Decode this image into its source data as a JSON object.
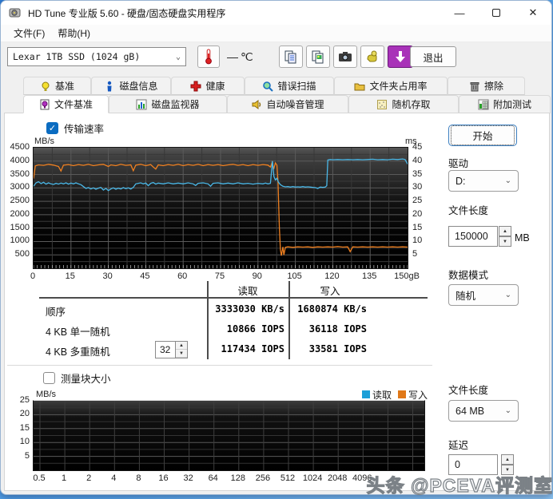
{
  "window": {
    "title": "HD Tune 专业版 5.60 - 硬盘/固态硬盘实用程序"
  },
  "menu": {
    "items": [
      "文件(F)",
      "帮助(H)"
    ]
  },
  "toolbar": {
    "drive_select_value": "Lexar 1TB SSD (1024 gB)",
    "temperature_value": "—",
    "temperature_unit": "℃",
    "exit_label": "退出",
    "icon_buttons": [
      "thermometer-icon",
      "copy-text-icon",
      "copy-image-icon",
      "camera-icon",
      "donate-hand-icon",
      "update-download-icon"
    ]
  },
  "tabs": {
    "row1": [
      {
        "name": "benchmark",
        "label": "基准",
        "icon": "bulb",
        "active": false
      },
      {
        "name": "disk-info",
        "label": "磁盘信息",
        "icon": "info",
        "active": false
      },
      {
        "name": "health",
        "label": "健康",
        "icon": "cross",
        "active": false
      },
      {
        "name": "error-scan",
        "label": "错误扫描",
        "icon": "magnifier",
        "active": false
      },
      {
        "name": "folder-usage",
        "label": "文件夹占用率",
        "icon": "folder",
        "active": false
      },
      {
        "name": "erase",
        "label": "擦除",
        "icon": "trash",
        "active": false
      }
    ],
    "row2": [
      {
        "name": "file-benchmark",
        "label": "文件基准",
        "icon": "filebulb",
        "active": true
      },
      {
        "name": "disk-monitor",
        "label": "磁盘监视器",
        "icon": "bars",
        "active": false
      },
      {
        "name": "auto-noise",
        "label": "自动噪音管理",
        "icon": "speaker",
        "active": false
      },
      {
        "name": "random-access",
        "label": "随机存取",
        "icon": "dots",
        "active": false
      },
      {
        "name": "extra-tests",
        "label": "附加测试",
        "icon": "chartbox",
        "active": false
      }
    ]
  },
  "controls": {
    "transfer_rate_label": "传输速率",
    "transfer_rate_checked": true,
    "block_size_label": "测量块大小",
    "block_size_checked": false,
    "start_label": "开始",
    "drive_label": "驱动",
    "drive_value": "D:",
    "file_length_label": "文件长度",
    "file_length_value": "150000",
    "file_length_unit": "MB",
    "data_mode_label": "数据模式",
    "data_mode_value": "随机",
    "file_length2_label": "文件长度",
    "file_length2_value": "64 MB",
    "delay_label": "延迟",
    "delay_value": "0",
    "queue_depth_value": "32"
  },
  "results": {
    "col_headers": [
      "读取",
      "写入"
    ],
    "rows": [
      {
        "label": "顺序",
        "read": "3333030 KB/s",
        "write": "1680874 KB/s",
        "spinner": null
      },
      {
        "label": "4 KB 单一随机",
        "read": "10866 IOPS",
        "write": "36118 IOPS",
        "spinner": null
      },
      {
        "label": "4 KB 多重随机",
        "read": "117434 IOPS",
        "write": "33581 IOPS",
        "spinner": "32"
      }
    ]
  },
  "legend": {
    "read_label": "读取",
    "write_label": "写入",
    "read_color": "#1b9fd8",
    "write_color": "#e07818"
  },
  "watermark": "头条 @PCEVA评测室",
  "chart_data": [
    {
      "type": "line",
      "title": "传输速率",
      "ylabel_left": "MB/s",
      "ylabel_right": "ms",
      "xlim": [
        0,
        150
      ],
      "ylim_left": [
        0,
        4500
      ],
      "ylim_right": [
        0,
        45
      ],
      "x_ticks": [
        "0",
        "15",
        "30",
        "45",
        "60",
        "75",
        "90",
        "105",
        "120",
        "135",
        "150gB"
      ],
      "x_tick_values": [
        0,
        15,
        30,
        45,
        60,
        75,
        90,
        105,
        120,
        135,
        150
      ],
      "y_ticks_left": [
        4500,
        4000,
        3500,
        3000,
        2500,
        2000,
        1500,
        1000,
        500
      ],
      "y_ticks_right": [
        45,
        40,
        35,
        30,
        25,
        20,
        15,
        10,
        5
      ],
      "grid": true,
      "series": [
        {
          "name": "写入",
          "color": "#f08020",
          "points": [
            [
              0,
              3350
            ],
            [
              0.7,
              3820
            ],
            [
              2,
              3860
            ],
            [
              4,
              3840
            ],
            [
              6,
              3880
            ],
            [
              8,
              3850
            ],
            [
              10,
              3800
            ],
            [
              11,
              3630
            ],
            [
              12,
              3850
            ],
            [
              14,
              3870
            ],
            [
              16,
              3830
            ],
            [
              18,
              3870
            ],
            [
              20,
              3840
            ],
            [
              22,
              3880
            ],
            [
              24,
              3830
            ],
            [
              26,
              3860
            ],
            [
              28,
              3880
            ],
            [
              30,
              3800
            ],
            [
              31,
              3860
            ],
            [
              33,
              3830
            ],
            [
              35,
              3880
            ],
            [
              37,
              3840
            ],
            [
              39,
              3860
            ],
            [
              40,
              3640
            ],
            [
              41,
              3850
            ],
            [
              43,
              3880
            ],
            [
              45,
              3830
            ],
            [
              47,
              3870
            ],
            [
              48,
              3780
            ],
            [
              49,
              3700
            ],
            [
              50,
              3860
            ],
            [
              52,
              3830
            ],
            [
              54,
              3870
            ],
            [
              56,
              3840
            ],
            [
              58,
              3880
            ],
            [
              60,
              3830
            ],
            [
              62,
              3870
            ],
            [
              64,
              3840
            ],
            [
              66,
              3880
            ],
            [
              68,
              3830
            ],
            [
              70,
              3870
            ],
            [
              72,
              3840
            ],
            [
              74,
              3870
            ],
            [
              76,
              3830
            ],
            [
              78,
              3860
            ],
            [
              80,
              3880
            ],
            [
              82,
              3840
            ],
            [
              84,
              3870
            ],
            [
              86,
              3830
            ],
            [
              88,
              3870
            ],
            [
              90,
              3840
            ],
            [
              92,
              3870
            ],
            [
              94,
              3850
            ],
            [
              95,
              3780
            ],
            [
              95.7,
              3960
            ],
            [
              96.3,
              3700
            ],
            [
              97,
              3930
            ],
            [
              97.6,
              3850
            ],
            [
              98,
              3300
            ],
            [
              98.6,
              1500
            ],
            [
              99,
              700
            ],
            [
              99.4,
              470
            ],
            [
              100,
              800
            ],
            [
              100.4,
              500
            ],
            [
              101,
              780
            ],
            [
              102,
              800
            ],
            [
              104,
              780
            ],
            [
              106,
              800
            ],
            [
              108,
              790
            ],
            [
              110,
              800
            ],
            [
              112,
              780
            ],
            [
              114,
              800
            ],
            [
              116,
              790
            ],
            [
              118,
              800
            ],
            [
              120,
              790
            ],
            [
              122,
              810
            ],
            [
              124,
              790
            ],
            [
              126,
              800
            ],
            [
              127,
              620
            ],
            [
              128,
              800
            ],
            [
              130,
              790
            ],
            [
              132,
              800
            ],
            [
              134,
              790
            ],
            [
              136,
              800
            ],
            [
              138,
              790
            ],
            [
              140,
              800
            ],
            [
              142,
              790
            ],
            [
              144,
              800
            ],
            [
              146,
              790
            ],
            [
              148,
              800
            ],
            [
              150,
              790
            ]
          ]
        },
        {
          "name": "读取",
          "color": "#4ab8e8",
          "points": [
            [
              0,
              3060
            ],
            [
              1,
              3190
            ],
            [
              2,
              3230
            ],
            [
              3,
              3160
            ],
            [
              4,
              3210
            ],
            [
              5,
              3140
            ],
            [
              6,
              3190
            ],
            [
              7,
              3150
            ],
            [
              8,
              3130
            ],
            [
              9,
              3170
            ],
            [
              10,
              3140
            ],
            [
              11,
              3180
            ],
            [
              12,
              3150
            ],
            [
              13,
              3190
            ],
            [
              14,
              3140
            ],
            [
              15,
              3180
            ],
            [
              16,
              3150
            ],
            [
              17,
              3190
            ],
            [
              18,
              3150
            ],
            [
              19,
              3120
            ],
            [
              20,
              3050
            ],
            [
              21,
              2980
            ],
            [
              22,
              3010
            ],
            [
              23,
              2960
            ],
            [
              24,
              3000
            ],
            [
              25,
              2950
            ],
            [
              26,
              2990
            ],
            [
              27,
              3020
            ],
            [
              28,
              2920
            ],
            [
              29,
              2980
            ],
            [
              30,
              2900
            ],
            [
              31,
              2960
            ],
            [
              32,
              3000
            ],
            [
              33,
              2950
            ],
            [
              34,
              2990
            ],
            [
              35,
              2960
            ],
            [
              36,
              3010
            ],
            [
              37,
              2970
            ],
            [
              38,
              3000
            ],
            [
              39,
              2960
            ],
            [
              40,
              3020
            ],
            [
              41,
              3150
            ],
            [
              42,
              3170
            ],
            [
              43,
              3190
            ],
            [
              44,
              3150
            ],
            [
              45,
              3180
            ],
            [
              46,
              3080
            ],
            [
              47,
              3170
            ],
            [
              48,
              3200
            ],
            [
              49,
              3140
            ],
            [
              50,
              3180
            ],
            [
              52,
              3150
            ],
            [
              54,
              3190
            ],
            [
              56,
              3150
            ],
            [
              58,
              3180
            ],
            [
              60,
              3150
            ],
            [
              62,
              3190
            ],
            [
              64,
              3150
            ],
            [
              65,
              3090
            ],
            [
              66,
              3170
            ],
            [
              68,
              3190
            ],
            [
              70,
              3150
            ],
            [
              71,
              3060
            ],
            [
              72,
              3170
            ],
            [
              74,
              3190
            ],
            [
              76,
              3150
            ],
            [
              78,
              3180
            ],
            [
              80,
              3150
            ],
            [
              82,
              3190
            ],
            [
              84,
              3150
            ],
            [
              86,
              3170
            ],
            [
              88,
              3140
            ],
            [
              90,
              3170
            ],
            [
              92,
              3150
            ],
            [
              93,
              3180
            ],
            [
              94,
              3150
            ],
            [
              95,
              3170
            ],
            [
              95.8,
              4000
            ],
            [
              96.4,
              3420
            ],
            [
              97,
              3300
            ],
            [
              97.6,
              3360
            ],
            [
              98.2,
              3220
            ],
            [
              99,
              3120
            ],
            [
              100,
              3060
            ],
            [
              101,
              3040
            ],
            [
              102,
              3050
            ],
            [
              103,
              3030
            ],
            [
              104,
              3050
            ],
            [
              105,
              3030
            ],
            [
              106,
              3040
            ],
            [
              107,
              3030
            ],
            [
              108,
              3050
            ],
            [
              109,
              3030
            ],
            [
              110,
              3040
            ],
            [
              111,
              3030
            ],
            [
              112,
              3020
            ],
            [
              113,
              3010
            ],
            [
              114,
              2980
            ],
            [
              115,
              3030
            ],
            [
              116,
              3020
            ],
            [
              117,
              3030
            ],
            [
              117.6,
              3080
            ],
            [
              118,
              4040
            ],
            [
              119,
              4060
            ],
            [
              120,
              4050
            ],
            [
              122,
              4060
            ],
            [
              124,
              4050
            ],
            [
              126,
              4060
            ],
            [
              128,
              4050
            ],
            [
              130,
              4060
            ],
            [
              132,
              4050
            ],
            [
              134,
              4060
            ],
            [
              136,
              4070
            ],
            [
              138,
              4050
            ],
            [
              140,
              4060
            ],
            [
              142,
              4050
            ],
            [
              144,
              4070
            ],
            [
              146,
              4060
            ],
            [
              148,
              4080
            ],
            [
              149,
              4060
            ],
            [
              150,
              3890
            ]
          ]
        }
      ]
    },
    {
      "type": "line",
      "title": "测量块大小",
      "ylabel": "MB/s",
      "x_ticks": [
        "0.5",
        "1",
        "2",
        "4",
        "8",
        "16",
        "32",
        "64",
        "128",
        "256",
        "512",
        "1024",
        "2048",
        "4096"
      ],
      "ylim": [
        0,
        25
      ],
      "y_ticks": [
        25,
        20,
        15,
        10,
        5
      ],
      "grid": true,
      "series": []
    }
  ]
}
